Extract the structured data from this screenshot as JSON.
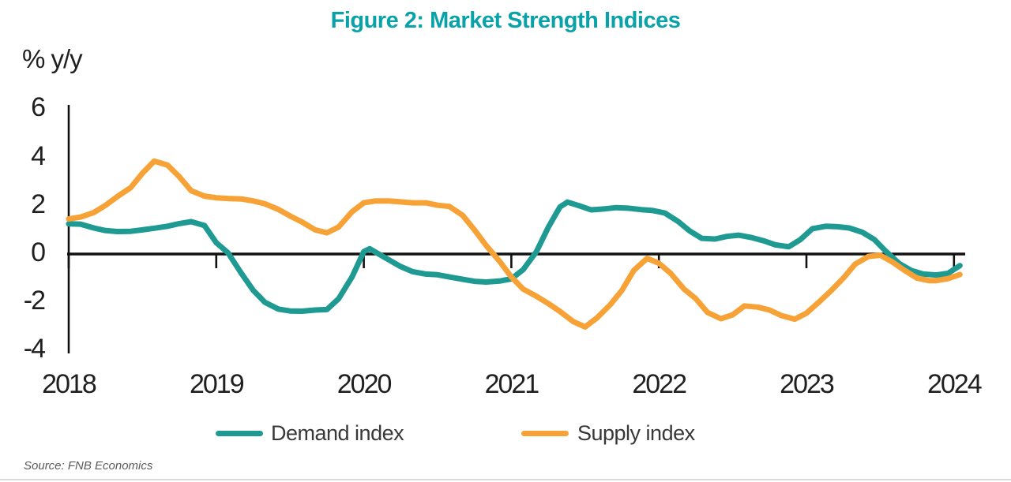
{
  "title": "Figure 2: Market Strength Indices",
  "y_axis_label": "% y/y",
  "source": "Source: FNB Economics",
  "legend": {
    "demand_label": "Demand index",
    "supply_label": "Supply index"
  },
  "colors": {
    "title": "#0aa2a9",
    "demand": "#1f9a93",
    "supply": "#f7a236",
    "axis": "#111111",
    "tick_text": "#1f1f1f",
    "bottom_rule": "#d9d9d9"
  },
  "chart_data": {
    "type": "line",
    "title": "Figure 2: Market Strength Indices",
    "ylabel": "% y/y",
    "ylim": [
      -4,
      6
    ],
    "y_ticks": [
      6,
      4,
      2,
      0,
      -2,
      -4
    ],
    "x_ticks": [
      2018,
      2019,
      2020,
      2021,
      2022,
      2023,
      2024
    ],
    "grid": false,
    "legend_position": "bottom",
    "series": [
      {
        "name": "Demand index",
        "color": "#1f9a93",
        "points": [
          [
            2018.0,
            1.25
          ],
          [
            2018.08,
            1.24
          ],
          [
            2018.17,
            1.08
          ],
          [
            2018.25,
            0.97
          ],
          [
            2018.33,
            0.93
          ],
          [
            2018.42,
            0.94
          ],
          [
            2018.5,
            1.0
          ],
          [
            2018.58,
            1.07
          ],
          [
            2018.67,
            1.15
          ],
          [
            2018.75,
            1.26
          ],
          [
            2018.83,
            1.34
          ],
          [
            2018.92,
            1.18
          ],
          [
            2019.0,
            0.47
          ],
          [
            2019.08,
            0.05
          ],
          [
            2019.17,
            -0.8
          ],
          [
            2019.25,
            -1.5
          ],
          [
            2019.33,
            -2.0
          ],
          [
            2019.42,
            -2.28
          ],
          [
            2019.5,
            -2.36
          ],
          [
            2019.58,
            -2.37
          ],
          [
            2019.67,
            -2.32
          ],
          [
            2019.75,
            -2.3
          ],
          [
            2019.83,
            -1.85
          ],
          [
            2019.92,
            -0.95
          ],
          [
            2020.0,
            0.1
          ],
          [
            2020.04,
            0.22
          ],
          [
            2020.13,
            -0.1
          ],
          [
            2020.25,
            -0.52
          ],
          [
            2020.33,
            -0.73
          ],
          [
            2020.42,
            -0.83
          ],
          [
            2020.5,
            -0.86
          ],
          [
            2020.58,
            -0.95
          ],
          [
            2020.67,
            -1.05
          ],
          [
            2020.75,
            -1.13
          ],
          [
            2020.83,
            -1.16
          ],
          [
            2020.92,
            -1.12
          ],
          [
            2021.0,
            -1.03
          ],
          [
            2021.08,
            -0.65
          ],
          [
            2021.17,
            0.1
          ],
          [
            2021.25,
            1.1
          ],
          [
            2021.33,
            1.95
          ],
          [
            2021.38,
            2.15
          ],
          [
            2021.46,
            2.0
          ],
          [
            2021.54,
            1.83
          ],
          [
            2021.63,
            1.87
          ],
          [
            2021.71,
            1.92
          ],
          [
            2021.79,
            1.9
          ],
          [
            2021.88,
            1.84
          ],
          [
            2021.96,
            1.8
          ],
          [
            2022.04,
            1.7
          ],
          [
            2022.13,
            1.35
          ],
          [
            2022.21,
            0.95
          ],
          [
            2022.29,
            0.65
          ],
          [
            2022.38,
            0.62
          ],
          [
            2022.46,
            0.73
          ],
          [
            2022.54,
            0.78
          ],
          [
            2022.63,
            0.68
          ],
          [
            2022.71,
            0.55
          ],
          [
            2022.79,
            0.38
          ],
          [
            2022.88,
            0.3
          ],
          [
            2022.96,
            0.6
          ],
          [
            2023.04,
            1.05
          ],
          [
            2023.13,
            1.15
          ],
          [
            2023.21,
            1.13
          ],
          [
            2023.29,
            1.08
          ],
          [
            2023.38,
            0.9
          ],
          [
            2023.46,
            0.6
          ],
          [
            2023.54,
            0.1
          ],
          [
            2023.63,
            -0.4
          ],
          [
            2023.71,
            -0.68
          ],
          [
            2023.79,
            -0.83
          ],
          [
            2023.88,
            -0.87
          ],
          [
            2023.96,
            -0.8
          ],
          [
            2024.04,
            -0.48
          ]
        ]
      },
      {
        "name": "Supply index",
        "color": "#f7a236",
        "points": [
          [
            2018.0,
            1.45
          ],
          [
            2018.08,
            1.53
          ],
          [
            2018.17,
            1.72
          ],
          [
            2018.25,
            2.02
          ],
          [
            2018.33,
            2.38
          ],
          [
            2018.42,
            2.75
          ],
          [
            2018.5,
            3.35
          ],
          [
            2018.58,
            3.85
          ],
          [
            2018.67,
            3.68
          ],
          [
            2018.75,
            3.2
          ],
          [
            2018.83,
            2.62
          ],
          [
            2018.92,
            2.4
          ],
          [
            2019.0,
            2.33
          ],
          [
            2019.08,
            2.3
          ],
          [
            2019.17,
            2.28
          ],
          [
            2019.25,
            2.2
          ],
          [
            2019.33,
            2.08
          ],
          [
            2019.42,
            1.85
          ],
          [
            2019.5,
            1.58
          ],
          [
            2019.58,
            1.33
          ],
          [
            2019.67,
            1.0
          ],
          [
            2019.75,
            0.88
          ],
          [
            2019.83,
            1.12
          ],
          [
            2019.92,
            1.75
          ],
          [
            2020.0,
            2.12
          ],
          [
            2020.08,
            2.2
          ],
          [
            2020.17,
            2.2
          ],
          [
            2020.25,
            2.16
          ],
          [
            2020.33,
            2.12
          ],
          [
            2020.42,
            2.12
          ],
          [
            2020.5,
            2.02
          ],
          [
            2020.58,
            1.97
          ],
          [
            2020.67,
            1.6
          ],
          [
            2020.75,
            1.0
          ],
          [
            2020.83,
            0.35
          ],
          [
            2020.92,
            -0.3
          ],
          [
            2021.0,
            -0.95
          ],
          [
            2021.08,
            -1.45
          ],
          [
            2021.17,
            -1.75
          ],
          [
            2021.25,
            -2.05
          ],
          [
            2021.33,
            -2.38
          ],
          [
            2021.42,
            -2.8
          ],
          [
            2021.5,
            -3.02
          ],
          [
            2021.58,
            -2.65
          ],
          [
            2021.67,
            -2.1
          ],
          [
            2021.75,
            -1.5
          ],
          [
            2021.83,
            -0.68
          ],
          [
            2021.92,
            -0.18
          ],
          [
            2022.0,
            -0.38
          ],
          [
            2022.08,
            -0.8
          ],
          [
            2022.17,
            -1.45
          ],
          [
            2022.25,
            -1.85
          ],
          [
            2022.33,
            -2.42
          ],
          [
            2022.42,
            -2.68
          ],
          [
            2022.5,
            -2.52
          ],
          [
            2022.58,
            -2.15
          ],
          [
            2022.67,
            -2.2
          ],
          [
            2022.75,
            -2.32
          ],
          [
            2022.83,
            -2.55
          ],
          [
            2022.92,
            -2.7
          ],
          [
            2023.0,
            -2.45
          ],
          [
            2023.08,
            -2.02
          ],
          [
            2023.17,
            -1.5
          ],
          [
            2023.25,
            -1.0
          ],
          [
            2023.33,
            -0.42
          ],
          [
            2023.42,
            -0.1
          ],
          [
            2023.5,
            -0.05
          ],
          [
            2023.58,
            -0.32
          ],
          [
            2023.67,
            -0.7
          ],
          [
            2023.75,
            -1.0
          ],
          [
            2023.83,
            -1.1
          ],
          [
            2023.88,
            -1.1
          ],
          [
            2023.96,
            -1.02
          ],
          [
            2024.04,
            -0.85
          ]
        ]
      }
    ]
  }
}
